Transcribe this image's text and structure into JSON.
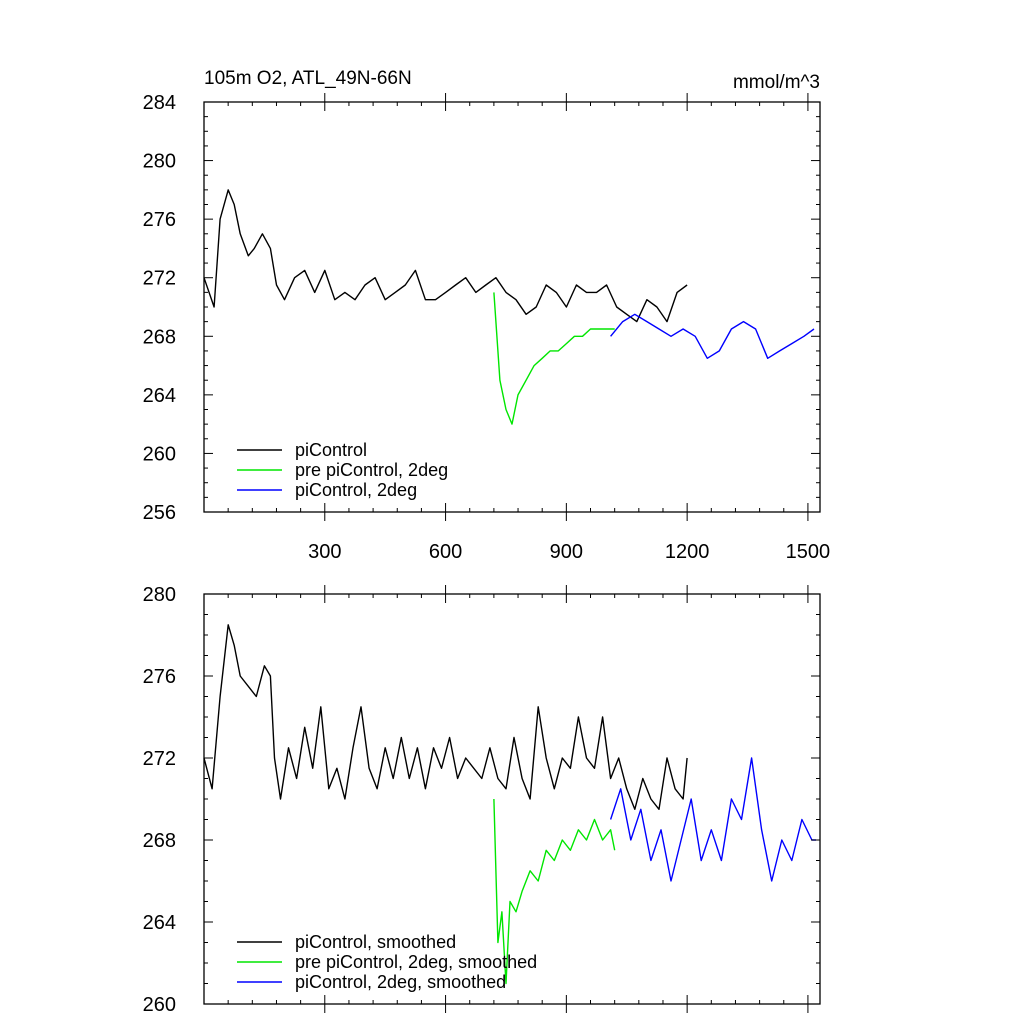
{
  "chart_data": [
    {
      "type": "line",
      "title": "105m O2, ATL_49N-66N",
      "units": "mmol/m^3",
      "xlim": [
        0,
        1530
      ],
      "ylim": [
        256,
        284
      ],
      "xticks": [
        300,
        600,
        900,
        1200,
        1500
      ],
      "xtick_labels": [
        "300",
        "600",
        "900",
        "1200",
        "1500"
      ],
      "yticks": [
        256,
        260,
        264,
        268,
        272,
        276,
        280,
        284
      ],
      "ytick_labels": [
        "256",
        "260",
        "264",
        "268",
        "272",
        "276",
        "280",
        "284"
      ],
      "legend_position": "bottom-left",
      "series": [
        {
          "name": "piControl",
          "color": "#000000",
          "x": [
            0,
            25,
            40,
            60,
            75,
            90,
            110,
            125,
            145,
            165,
            180,
            200,
            225,
            250,
            275,
            300,
            325,
            350,
            375,
            400,
            425,
            450,
            475,
            500,
            525,
            550,
            575,
            600,
            625,
            650,
            675,
            700,
            725,
            750,
            775,
            800,
            825,
            850,
            875,
            900,
            925,
            950,
            975,
            1000,
            1025,
            1050,
            1075,
            1100,
            1125,
            1150,
            1175,
            1200
          ],
          "y": [
            272,
            270,
            276,
            278,
            277,
            275,
            273.5,
            274,
            275,
            274,
            271.5,
            270.5,
            272,
            272.5,
            271,
            272.5,
            270.5,
            271,
            270.5,
            271.5,
            272,
            270.5,
            271,
            271.5,
            272.5,
            270.5,
            270.5,
            271,
            271.5,
            272,
            271,
            271.5,
            272,
            271,
            270.5,
            269.5,
            270,
            271.5,
            271,
            270,
            271.5,
            271,
            271,
            271.5,
            270,
            269.5,
            269,
            270.5,
            270,
            269,
            271,
            271.5
          ]
        },
        {
          "name": "pre piControl, 2deg",
          "color": "#00e600",
          "x": [
            720,
            735,
            750,
            765,
            780,
            800,
            820,
            840,
            860,
            880,
            900,
            920,
            940,
            960,
            980,
            1000,
            1020
          ],
          "y": [
            271,
            265,
            263,
            262,
            264,
            265,
            266,
            266.5,
            267,
            267,
            267.5,
            268,
            268,
            268.5,
            268.5,
            268.5,
            268.5
          ]
        },
        {
          "name": "piControl, 2deg",
          "color": "#0000ff",
          "x": [
            1010,
            1040,
            1070,
            1100,
            1130,
            1160,
            1190,
            1220,
            1250,
            1280,
            1310,
            1340,
            1370,
            1400,
            1430,
            1460,
            1490,
            1515
          ],
          "y": [
            268,
            269,
            269.5,
            269,
            268.5,
            268,
            268.5,
            268,
            266.5,
            267,
            268.5,
            269,
            268.5,
            266.5,
            267,
            267.5,
            268,
            268.5
          ]
        }
      ]
    },
    {
      "type": "line",
      "title": "",
      "xlim": [
        0,
        1530
      ],
      "ylim": [
        260,
        280
      ],
      "xticks": [
        300,
        600,
        900,
        1200,
        1500
      ],
      "yticks": [
        260,
        264,
        268,
        272,
        276,
        280
      ],
      "ytick_labels": [
        "260",
        "264",
        "268",
        "272",
        "276",
        "280"
      ],
      "legend_position": "bottom-left",
      "series": [
        {
          "name": "piControl, smoothed",
          "color": "#000000",
          "x": [
            0,
            20,
            40,
            60,
            75,
            90,
            110,
            130,
            150,
            165,
            175,
            190,
            210,
            230,
            250,
            270,
            290,
            310,
            330,
            350,
            370,
            390,
            410,
            430,
            450,
            470,
            490,
            510,
            530,
            550,
            570,
            590,
            610,
            630,
            650,
            670,
            690,
            710,
            730,
            750,
            770,
            790,
            810,
            830,
            850,
            870,
            890,
            910,
            930,
            950,
            970,
            990,
            1010,
            1030,
            1050,
            1070,
            1090,
            1110,
            1130,
            1150,
            1170,
            1190,
            1200
          ],
          "y": [
            272,
            270.5,
            275,
            278.5,
            277.5,
            276,
            275.5,
            275,
            276.5,
            276,
            272,
            270,
            272.5,
            271,
            273.5,
            271.5,
            274.5,
            270.5,
            271.5,
            270,
            272.5,
            274.5,
            271.5,
            270.5,
            272.5,
            271,
            273,
            271,
            272.5,
            270.5,
            272.5,
            271.5,
            273,
            271,
            272,
            271.5,
            271,
            272.5,
            271,
            270.5,
            273,
            271,
            270,
            274.5,
            272,
            270.5,
            272,
            271.5,
            274,
            272,
            271.5,
            274,
            271,
            272,
            270.5,
            269.5,
            271,
            270,
            269.5,
            272,
            270.5,
            270,
            272
          ]
        },
        {
          "name": "pre piControl, 2deg, smoothed",
          "color": "#00e600",
          "x": [
            720,
            730,
            740,
            750,
            760,
            775,
            790,
            810,
            830,
            850,
            870,
            890,
            910,
            930,
            950,
            970,
            990,
            1010,
            1020
          ],
          "y": [
            270,
            263,
            264.5,
            261,
            265,
            264.5,
            265.5,
            266.5,
            266,
            267.5,
            267,
            268,
            267.5,
            268.5,
            268,
            269,
            268,
            268.5,
            267.5
          ]
        },
        {
          "name": "piControl, 2deg, smoothed",
          "color": "#0000ff",
          "x": [
            1010,
            1035,
            1060,
            1085,
            1110,
            1135,
            1160,
            1185,
            1210,
            1235,
            1260,
            1285,
            1310,
            1335,
            1360,
            1385,
            1410,
            1435,
            1460,
            1485,
            1510,
            1520
          ],
          "y": [
            269,
            270.5,
            268,
            269.5,
            267,
            268.5,
            266,
            268,
            270,
            267,
            268.5,
            267,
            270,
            269,
            272,
            268.5,
            266,
            268,
            267,
            269,
            268,
            268
          ]
        }
      ]
    }
  ]
}
